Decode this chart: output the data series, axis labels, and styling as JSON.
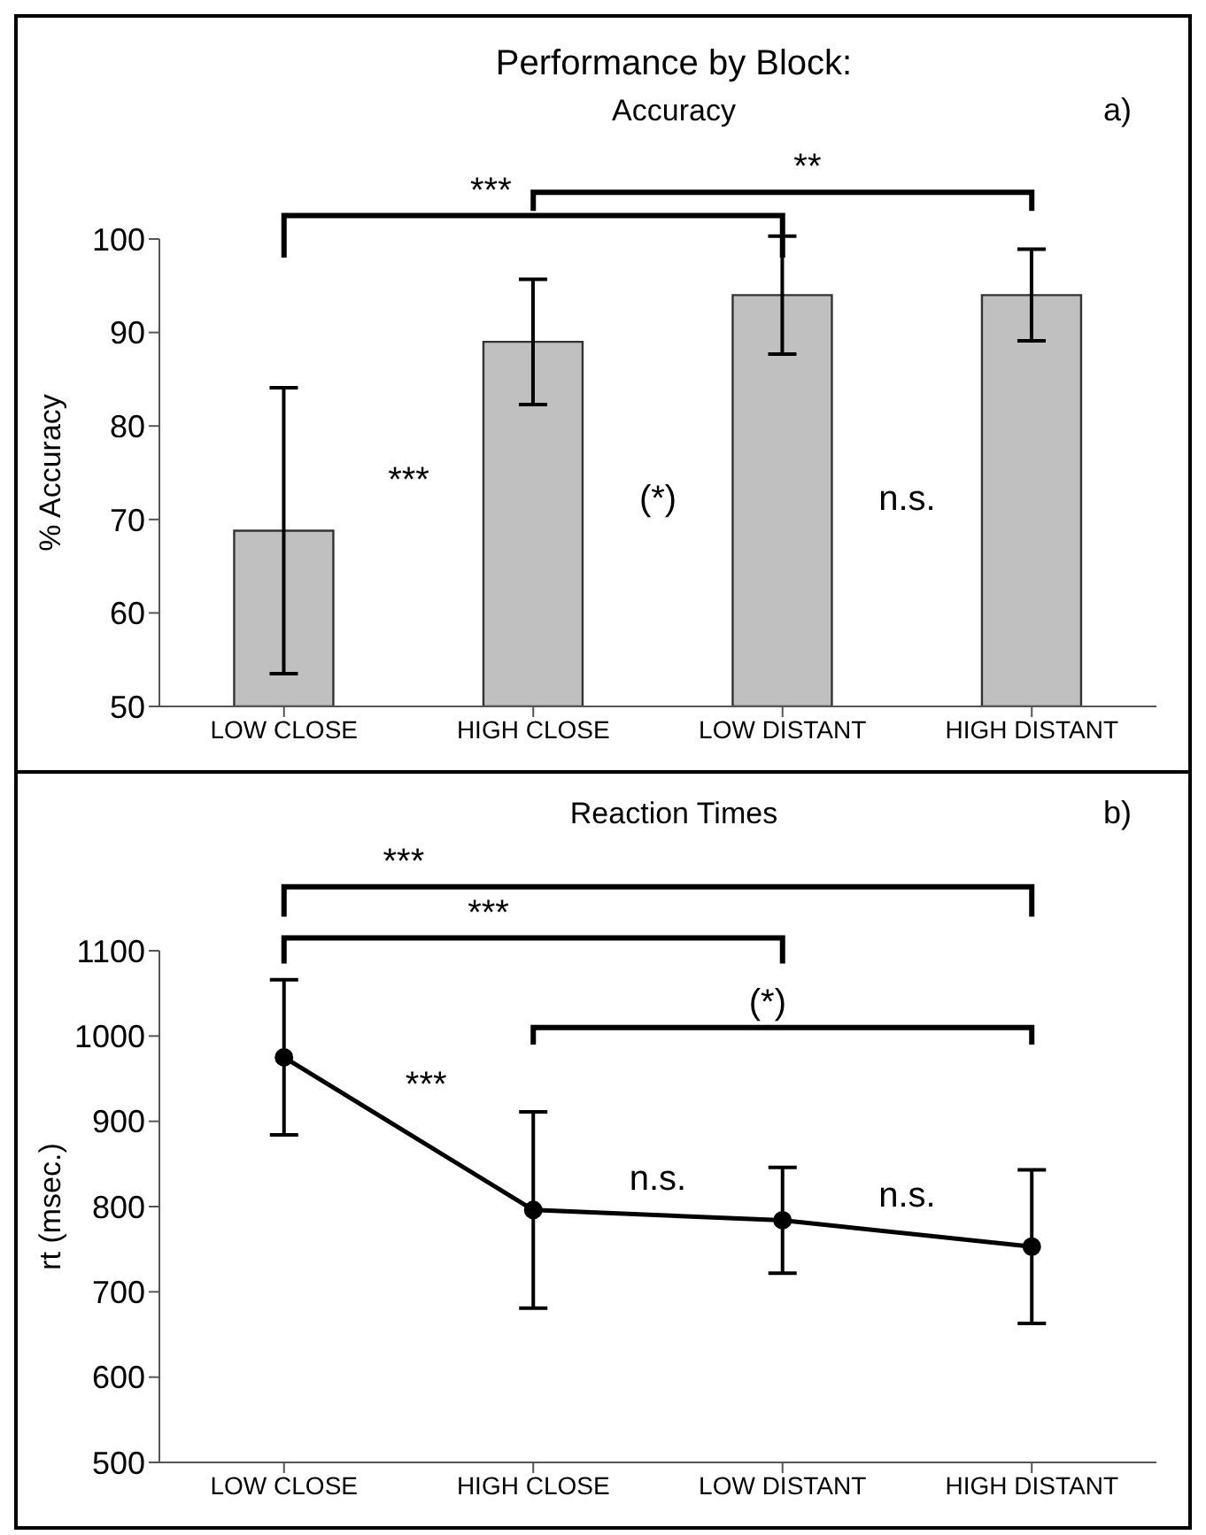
{
  "chart_data": [
    {
      "type": "bar",
      "title": "Performance by Block:",
      "subtitle": "Accuracy",
      "ylabel": "% Accuracy",
      "categories": [
        "LOW CLOSE",
        "HIGH CLOSE",
        "LOW DISTANT",
        "HIGH DISTANT"
      ],
      "values": [
        68.8,
        89,
        94,
        94
      ],
      "errors": [
        15.3,
        6.7,
        6.3,
        4.9
      ],
      "color": "#c0c0c0",
      "ylim": [
        50,
        100
      ],
      "yticks": [
        50,
        60,
        70,
        80,
        90,
        100
      ],
      "grid": false,
      "legend": false,
      "annotations": [
        "a)",
        "***",
        "**",
        "***",
        "(*)",
        "n.s."
      ]
    },
    {
      "type": "line",
      "title": "Reaction Times",
      "ylabel": "rt (msec.)",
      "categories": [
        "LOW CLOSE",
        "HIGH CLOSE",
        "LOW DISTANT",
        "HIGH DISTANT"
      ],
      "values": [
        975,
        796,
        784,
        753
      ],
      "errors": [
        91,
        115,
        62,
        90
      ],
      "color": "#000000",
      "marker": "circle",
      "line_style": "solid",
      "ylim": [
        500,
        1100
      ],
      "yticks": [
        500,
        600,
        700,
        800,
        900,
        1000,
        1100
      ],
      "grid": false,
      "legend": false,
      "annotations": [
        "b)",
        "***",
        "***",
        "(*)",
        "***",
        "n.s.",
        "n.s."
      ]
    }
  ]
}
